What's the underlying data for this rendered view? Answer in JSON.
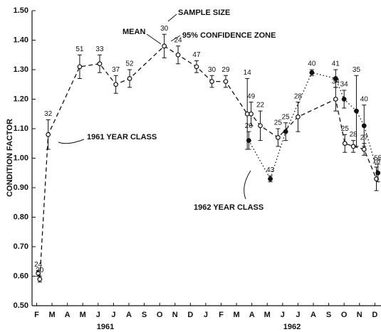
{
  "chart_data": {
    "type": "line",
    "ylabel": "CONDITION FACTOR",
    "ylim": [
      0.5,
      1.5
    ],
    "yticks": [
      {
        "value": 0.5,
        "label": "0.50"
      },
      {
        "value": 0.6,
        "label": "0.60"
      },
      {
        "value": 0.7,
        "label": "0.70"
      },
      {
        "value": 0.8,
        "label": "0.80"
      },
      {
        "value": 0.9,
        "label": "0.90"
      },
      {
        "value": 1.0,
        "label": "1.00"
      },
      {
        "value": 1.1,
        "label": "1.10"
      },
      {
        "value": 1.2,
        "label": "1.20"
      },
      {
        "value": 1.3,
        "label": "1.30"
      },
      {
        "value": 1.4,
        "label": "1.40"
      },
      {
        "value": 1.5,
        "label": "1.50"
      }
    ],
    "xlim": [
      -0.3,
      22.4
    ],
    "xticks": [
      {
        "value": 0,
        "label": "F"
      },
      {
        "value": 1,
        "label": "M"
      },
      {
        "value": 2,
        "label": "A"
      },
      {
        "value": 3,
        "label": "M"
      },
      {
        "value": 4,
        "label": "J"
      },
      {
        "value": 5,
        "label": "J"
      },
      {
        "value": 6,
        "label": "A"
      },
      {
        "value": 7,
        "label": "S"
      },
      {
        "value": 8,
        "label": "O"
      },
      {
        "value": 9,
        "label": "N"
      },
      {
        "value": 10,
        "label": "D"
      },
      {
        "value": 11,
        "label": "J"
      },
      {
        "value": 12,
        "label": "F"
      },
      {
        "value": 13,
        "label": "M"
      },
      {
        "value": 14,
        "label": "A"
      },
      {
        "value": 15,
        "label": "M"
      },
      {
        "value": 16,
        "label": "J"
      },
      {
        "value": 17,
        "label": "J"
      },
      {
        "value": 18,
        "label": "A"
      },
      {
        "value": 19,
        "label": "S"
      },
      {
        "value": 20,
        "label": "O"
      },
      {
        "value": 21,
        "label": "N"
      },
      {
        "value": 22,
        "label": "D"
      }
    ],
    "years": [
      "1961",
      "1962"
    ],
    "annotations": [
      "SAMPLE SIZE",
      "MEAN",
      "95% CONFIDENCE ZONE"
    ],
    "series": [
      {
        "name": "1961 YEAR CLASS",
        "color": "#111111",
        "dash": "6,4",
        "marker": "open",
        "x": [
          0.1,
          0.2,
          0.75,
          2.8,
          4.1,
          5.15,
          6.05,
          8.3,
          9.2,
          10.4,
          11.4,
          12.3,
          13.7,
          13.95,
          14.55,
          15.7,
          17.0,
          19.45,
          20.05,
          20.6,
          21.3,
          22.1
        ],
        "values": [
          0.61,
          0.59,
          1.08,
          1.31,
          1.32,
          1.25,
          1.27,
          1.38,
          1.35,
          1.31,
          1.26,
          1.26,
          1.15,
          1.15,
          1.11,
          1.07,
          1.14,
          1.2,
          1.05,
          1.04,
          1.03,
          0.93
        ],
        "errors": [
          0.01,
          0.01,
          0.05,
          0.04,
          0.03,
          0.03,
          0.03,
          0.04,
          0.03,
          0.02,
          0.02,
          0.02,
          0.12,
          0.04,
          0.05,
          0.03,
          0.05,
          0.04,
          0.03,
          0.02,
          0.02,
          0.04
        ],
        "sample_sizes": [
          24,
          20,
          32,
          51,
          33,
          37,
          52,
          30,
          24,
          47,
          30,
          29,
          14,
          49,
          22,
          25,
          28,
          34,
          25,
          28,
          27,
          18
        ]
      },
      {
        "name": "1962 YEAR CLASS",
        "color": "#111111",
        "dash": "1.5,3",
        "marker": "filled",
        "x": [
          13.8,
          15.2,
          16.2,
          17.9,
          19.45,
          20.0,
          20.8,
          21.3,
          22.2
        ],
        "values": [
          1.06,
          0.93,
          1.09,
          1.29,
          1.27,
          1.2,
          1.16,
          1.11,
          0.95
        ],
        "errors": [
          0.03,
          0.01,
          0.03,
          0.01,
          0.03,
          0.03,
          0.12,
          0.07,
          0.03
        ],
        "sample_sizes": [
          20,
          43,
          25,
          40,
          41,
          34,
          35,
          40,
          55
        ]
      }
    ]
  }
}
